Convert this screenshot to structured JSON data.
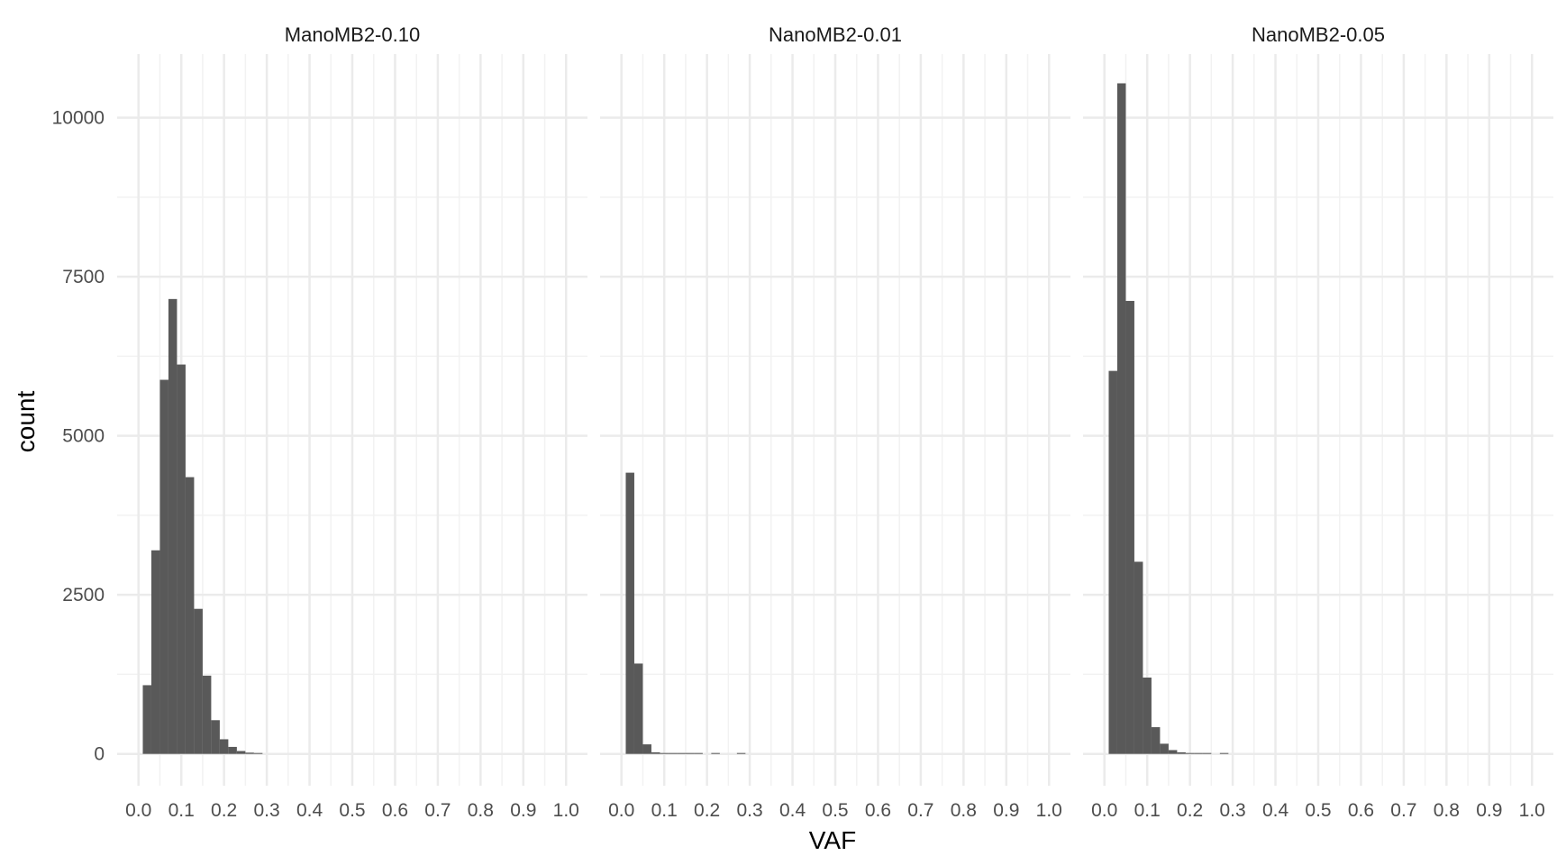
{
  "chart_data": {
    "type": "bar",
    "xlabel": "VAF",
    "ylabel": "count",
    "xlim": [
      -0.05,
      1.05
    ],
    "ylim": [
      -500,
      11000
    ],
    "x_ticks": [
      0.0,
      0.1,
      0.2,
      0.3,
      0.4,
      0.5,
      0.6,
      0.7,
      0.8,
      0.9,
      1.0
    ],
    "x_tick_labels": [
      "0.0",
      "0.1",
      "0.2",
      "0.3",
      "0.4",
      "0.5",
      "0.6",
      "0.7",
      "0.8",
      "0.9",
      "1.0"
    ],
    "y_ticks": [
      0,
      2500,
      5000,
      7500,
      10000
    ],
    "y_tick_labels": [
      "0",
      "2500",
      "5000",
      "7500",
      "10000"
    ],
    "bin_width": 0.02,
    "bar_color": "#595959",
    "grid": true,
    "panels": [
      {
        "name": "ManoMB2-0.10",
        "bins": [
          {
            "x": 0.02,
            "count": 1080
          },
          {
            "x": 0.04,
            "count": 3200
          },
          {
            "x": 0.06,
            "count": 5880
          },
          {
            "x": 0.08,
            "count": 7150
          },
          {
            "x": 0.1,
            "count": 6120
          },
          {
            "x": 0.12,
            "count": 4350
          },
          {
            "x": 0.14,
            "count": 2280
          },
          {
            "x": 0.16,
            "count": 1230
          },
          {
            "x": 0.18,
            "count": 530
          },
          {
            "x": 0.2,
            "count": 230
          },
          {
            "x": 0.22,
            "count": 110
          },
          {
            "x": 0.24,
            "count": 45
          },
          {
            "x": 0.26,
            "count": 20
          },
          {
            "x": 0.28,
            "count": 12
          }
        ]
      },
      {
        "name": "NanoMB2-0.01",
        "bins": [
          {
            "x": 0.02,
            "count": 4420
          },
          {
            "x": 0.04,
            "count": 1420
          },
          {
            "x": 0.06,
            "count": 150
          },
          {
            "x": 0.08,
            "count": 25
          },
          {
            "x": 0.1,
            "count": 10
          },
          {
            "x": 0.12,
            "count": 8
          },
          {
            "x": 0.14,
            "count": 6
          },
          {
            "x": 0.16,
            "count": 5
          },
          {
            "x": 0.18,
            "count": 4
          },
          {
            "x": 0.22,
            "count": 3
          },
          {
            "x": 0.28,
            "count": 3
          }
        ]
      },
      {
        "name": "NanoMB2-0.05",
        "bins": [
          {
            "x": 0.02,
            "count": 6020
          },
          {
            "x": 0.04,
            "count": 10540
          },
          {
            "x": 0.06,
            "count": 7120
          },
          {
            "x": 0.08,
            "count": 3020
          },
          {
            "x": 0.1,
            "count": 1200
          },
          {
            "x": 0.12,
            "count": 420
          },
          {
            "x": 0.14,
            "count": 160
          },
          {
            "x": 0.16,
            "count": 60
          },
          {
            "x": 0.18,
            "count": 25
          },
          {
            "x": 0.2,
            "count": 12
          },
          {
            "x": 0.22,
            "count": 8
          },
          {
            "x": 0.24,
            "count": 5
          },
          {
            "x": 0.28,
            "count": 4
          }
        ]
      }
    ]
  },
  "colors": {
    "major_grid": "#ebebeb",
    "minor_grid": "#f2f2f2"
  }
}
